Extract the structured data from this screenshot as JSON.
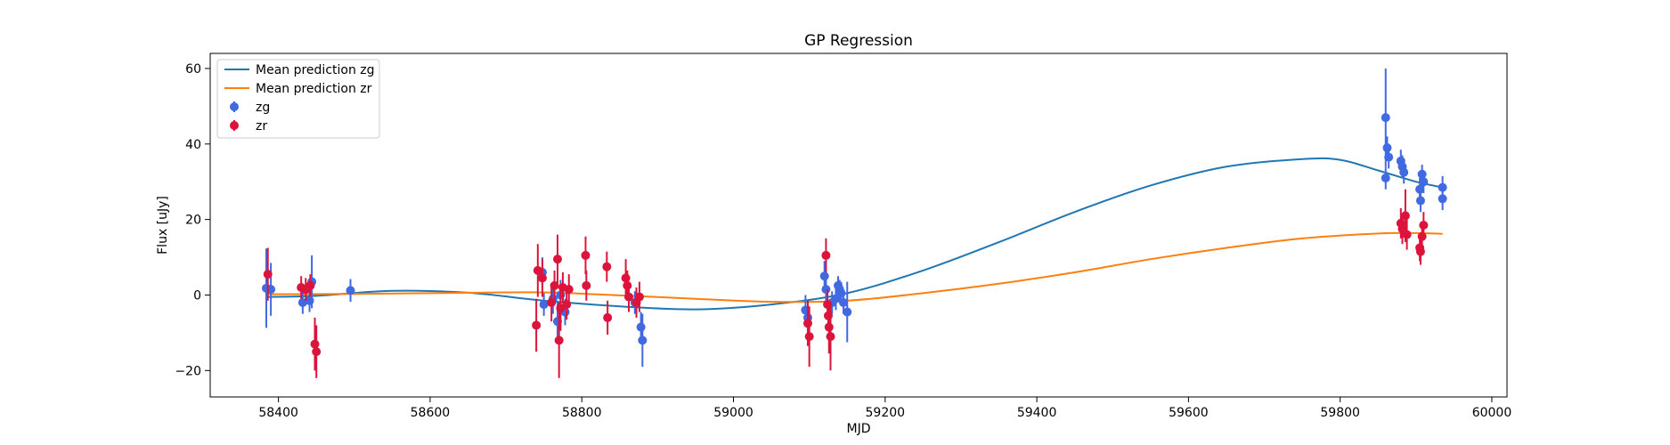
{
  "chart_data": {
    "type": "scatter",
    "title": "GP Regression",
    "xlabel": "MJD",
    "ylabel": "Flux [uJy]",
    "xlim": [
      58310,
      60020
    ],
    "ylim": [
      -27,
      64
    ],
    "xticks": [
      58400,
      58600,
      58800,
      59000,
      59200,
      59400,
      59600,
      59800,
      60000
    ],
    "yticks": [
      -20,
      0,
      20,
      40,
      60
    ],
    "grid": false,
    "legend_position": "top-left",
    "legend": [
      "Mean prediction zg",
      "Mean prediction zr",
      "zg",
      "zr"
    ],
    "series": [
      {
        "name": "Mean prediction zg",
        "kind": "line",
        "color": "#1f77b4",
        "x": [
          58385,
          58450,
          58550,
          58650,
          58750,
          58850,
          58950,
          59050,
          59150,
          59250,
          59350,
          59450,
          59550,
          59650,
          59750,
          59800,
          59850,
          59900,
          59935
        ],
        "y": [
          -0.5,
          -0.2,
          1.1,
          0.6,
          -1.5,
          -3.0,
          -3.8,
          -2.5,
          0.5,
          6.5,
          14.0,
          22.0,
          29.0,
          34.0,
          36.0,
          35.8,
          33.0,
          30.0,
          28.5
        ]
      },
      {
        "name": "Mean prediction zr",
        "kind": "line",
        "color": "#ff7f0e",
        "x": [
          58385,
          58500,
          58650,
          58750,
          58850,
          58950,
          59050,
          59150,
          59250,
          59350,
          59450,
          59550,
          59650,
          59750,
          59850,
          59900,
          59935
        ],
        "y": [
          0.2,
          0.3,
          0.6,
          0.7,
          -0.1,
          -1.0,
          -1.8,
          -1.5,
          0.5,
          3.0,
          6.0,
          9.5,
          12.5,
          15.0,
          16.3,
          16.4,
          16.2
        ]
      },
      {
        "name": "zg",
        "kind": "errorbar",
        "color": "#4169e1",
        "points": [
          [
            58384,
            1.8,
            10.5
          ],
          [
            58390,
            1.5,
            7.0
          ],
          [
            58432,
            -2.0,
            3.0
          ],
          [
            58441,
            -1.5,
            3.0
          ],
          [
            58444,
            3.5,
            7.0
          ],
          [
            58495,
            1.2,
            3.0
          ],
          [
            58748,
            6.0,
            4.0
          ],
          [
            58750,
            -2.5,
            3.0
          ],
          [
            58762,
            -1.0,
            4.0
          ],
          [
            58768,
            -7.0,
            5.0
          ],
          [
            58772,
            0.0,
            4.0
          ],
          [
            58778,
            -4.5,
            3.5
          ],
          [
            58870,
            -2.0,
            3.0
          ],
          [
            58878,
            -8.5,
            4.0
          ],
          [
            58880,
            -12.0,
            7.0
          ],
          [
            59095,
            -4.0,
            4.0
          ],
          [
            59098,
            -6.0,
            4.0
          ],
          [
            59120,
            5.0,
            4.0
          ],
          [
            59122,
            1.5,
            3.0
          ],
          [
            59130,
            -2.0,
            3.0
          ],
          [
            59135,
            -1.0,
            3.0
          ],
          [
            59138,
            2.5,
            2.5
          ],
          [
            59140,
            1.5,
            2.5
          ],
          [
            59142,
            0.5,
            3.0
          ],
          [
            59145,
            -2.0,
            3.0
          ],
          [
            59150,
            -4.5,
            8.0
          ],
          [
            59860,
            47.0,
            13.0
          ],
          [
            59862,
            39.0,
            3.0
          ],
          [
            59864,
            36.5,
            3.0
          ],
          [
            59860,
            31.0,
            3.0
          ],
          [
            59880,
            35.5,
            3.0
          ],
          [
            59882,
            34.0,
            3.0
          ],
          [
            59884,
            32.5,
            3.0
          ],
          [
            59905,
            28.0,
            3.0
          ],
          [
            59906,
            25.0,
            3.0
          ],
          [
            59908,
            32.0,
            2.5
          ],
          [
            59910,
            30.0,
            3.0
          ],
          [
            59935,
            28.5,
            3.0
          ],
          [
            59935,
            25.5,
            3.0
          ]
        ]
      },
      {
        "name": "zr",
        "kind": "errorbar",
        "color": "#dc143c",
        "points": [
          [
            58386,
            5.5,
            7.0
          ],
          [
            58430,
            2.0,
            3.0
          ],
          [
            58436,
            1.5,
            3.0
          ],
          [
            58442,
            2.5,
            3.0
          ],
          [
            58448,
            -13.0,
            7.0
          ],
          [
            58450,
            -15.0,
            7.0
          ],
          [
            58740,
            -8.0,
            7.0
          ],
          [
            58742,
            6.5,
            7.0
          ],
          [
            58748,
            4.5,
            5.0
          ],
          [
            58760,
            -2.0,
            5.0
          ],
          [
            58764,
            2.5,
            4.0
          ],
          [
            58768,
            9.5,
            6.5
          ],
          [
            58770,
            -12.0,
            10.0
          ],
          [
            58772,
            -3.5,
            6.0
          ],
          [
            58775,
            2.0,
            4.0
          ],
          [
            58780,
            -2.5,
            4.0
          ],
          [
            58783,
            1.5,
            4.0
          ],
          [
            58805,
            10.5,
            5.0
          ],
          [
            58806,
            2.5,
            4.0
          ],
          [
            58833,
            7.5,
            4.0
          ],
          [
            58834,
            -6.0,
            4.5
          ],
          [
            58858,
            4.5,
            5.0
          ],
          [
            58860,
            2.5,
            4.0
          ],
          [
            58862,
            -0.5,
            4.0
          ],
          [
            58872,
            -2.0,
            4.0
          ],
          [
            58876,
            -0.5,
            4.0
          ],
          [
            59098,
            -7.5,
            6.0
          ],
          [
            59100,
            -11.0,
            8.0
          ],
          [
            59122,
            10.5,
            4.5
          ],
          [
            59124,
            -2.5,
            4.0
          ],
          [
            59125,
            -5.5,
            4.0
          ],
          [
            59126,
            -8.5,
            7.0
          ],
          [
            59128,
            -11.0,
            9.0
          ],
          [
            59880,
            19.0,
            4.0
          ],
          [
            59882,
            17.5,
            4.0
          ],
          [
            59886,
            21.0,
            7.0
          ],
          [
            59888,
            16.0,
            4.0
          ],
          [
            59905,
            12.5,
            3.5
          ],
          [
            59906,
            11.5,
            3.5
          ],
          [
            59908,
            15.5,
            3.5
          ],
          [
            59910,
            18.5,
            3.5
          ]
        ]
      }
    ]
  }
}
